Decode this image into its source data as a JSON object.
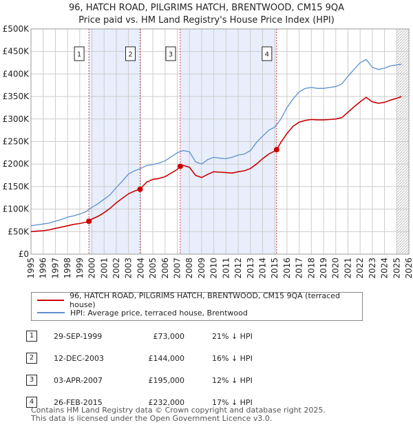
{
  "header": {
    "title_line1": "96, HATCH ROAD, PILGRIMS HATCH, BRENTWOOD, CM15 9QA",
    "title_line2": "Price paid vs. HM Land Registry's House Price Index (HPI)"
  },
  "colors": {
    "red": "#cc0000",
    "blue": "#5b8fcf",
    "band": "#e8eefb",
    "grid": "#cccccc",
    "vline": "#d04040"
  },
  "chart_data": {
    "type": "line",
    "title": "Price paid vs. HM Land Registry's House Price Index (HPI)",
    "xlabel": "",
    "ylabel": "",
    "xlim": [
      1995,
      2026
    ],
    "ylim": [
      0,
      500000
    ],
    "y_ticks": [
      {
        "value": 0,
        "label": "£0"
      },
      {
        "value": 50000,
        "label": "£50K"
      },
      {
        "value": 100000,
        "label": "£100K"
      },
      {
        "value": 150000,
        "label": "£150K"
      },
      {
        "value": 200000,
        "label": "£200K"
      },
      {
        "value": 250000,
        "label": "£250K"
      },
      {
        "value": 300000,
        "label": "£300K"
      },
      {
        "value": 350000,
        "label": "£350K"
      },
      {
        "value": 400000,
        "label": "£400K"
      },
      {
        "value": 450000,
        "label": "£450K"
      },
      {
        "value": 500000,
        "label": "£500K"
      }
    ],
    "x_ticks": [
      "1995",
      "1996",
      "1997",
      "1998",
      "1999",
      "2000",
      "2001",
      "2002",
      "2003",
      "2004",
      "2005",
      "2006",
      "2007",
      "2008",
      "2009",
      "2010",
      "2011",
      "2012",
      "2013",
      "2014",
      "2015",
      "2016",
      "2017",
      "2018",
      "2019",
      "2020",
      "2021",
      "2022",
      "2023",
      "2024",
      "2025",
      "2026"
    ],
    "shaded_bands": [
      [
        1999.75,
        2003.95
      ],
      [
        2007.25,
        2015.15
      ]
    ],
    "forecast_start": 2025.0,
    "series": [
      {
        "name": "HPI: Average price, terraced house, Brentwood",
        "color": "#5b8fcf",
        "x": [
          1995,
          1995.5,
          1996,
          1996.5,
          1997,
          1997.5,
          1998,
          1998.5,
          1999,
          1999.5,
          2000,
          2000.5,
          2001,
          2001.5,
          2002,
          2002.5,
          2003,
          2003.5,
          2004,
          2004.5,
          2005,
          2005.5,
          2006,
          2006.5,
          2007,
          2007.5,
          2008,
          2008.5,
          2009,
          2009.5,
          2010,
          2010.5,
          2011,
          2011.5,
          2012,
          2012.5,
          2013,
          2013.5,
          2014,
          2014.5,
          2015,
          2015.5,
          2016,
          2016.5,
          2017,
          2017.5,
          2018,
          2018.5,
          2019,
          2019.5,
          2020,
          2020.5,
          2021,
          2021.5,
          2022,
          2022.5,
          2023,
          2023.5,
          2024,
          2024.5,
          2025,
          2025.4
        ],
        "values": [
          63000,
          65000,
          67000,
          69000,
          73000,
          77000,
          82000,
          85000,
          89000,
          94000,
          104000,
          112000,
          122000,
          132000,
          148000,
          162000,
          178000,
          185000,
          190000,
          197000,
          199000,
          202000,
          207000,
          216000,
          225000,
          230000,
          227000,
          205000,
          200000,
          210000,
          215000,
          213000,
          212000,
          215000,
          220000,
          222000,
          230000,
          248000,
          262000,
          275000,
          282000,
          300000,
          325000,
          345000,
          360000,
          368000,
          370000,
          368000,
          368000,
          370000,
          372000,
          378000,
          395000,
          410000,
          425000,
          432000,
          415000,
          410000,
          413000,
          418000,
          420000,
          422000
        ]
      },
      {
        "name": "96, HATCH ROAD, PILGRIMS HATCH, BRENTWOOD, CM15 9QA (terraced house)",
        "color": "#cc0000",
        "x": [
          1995,
          1995.5,
          1996,
          1996.5,
          1997,
          1997.5,
          1998,
          1998.5,
          1999,
          1999.5,
          1999.75,
          2000,
          2000.5,
          2001,
          2001.5,
          2002,
          2002.5,
          2003,
          2003.5,
          2003.95,
          2004,
          2004.5,
          2005,
          2005.5,
          2006,
          2006.5,
          2007,
          2007.25,
          2007.5,
          2008,
          2008.5,
          2009,
          2009.5,
          2010,
          2010.5,
          2011,
          2011.5,
          2012,
          2012.5,
          2013,
          2013.5,
          2014,
          2014.5,
          2015,
          2015.15,
          2015.5,
          2016,
          2016.5,
          2017,
          2017.5,
          2018,
          2018.5,
          2019,
          2019.5,
          2020,
          2020.5,
          2021,
          2021.5,
          2022,
          2022.5,
          2023,
          2023.5,
          2024,
          2024.5,
          2025,
          2025.4
        ],
        "values": [
          50000,
          51000,
          52000,
          54000,
          57000,
          60000,
          63000,
          66000,
          68000,
          71000,
          73000,
          78000,
          84000,
          92000,
          102000,
          114000,
          124000,
          134000,
          140000,
          144000,
          146000,
          160000,
          166000,
          168000,
          172000,
          180000,
          188000,
          195000,
          197000,
          193000,
          175000,
          170000,
          177000,
          183000,
          182000,
          181000,
          180000,
          183000,
          185000,
          190000,
          200000,
          212000,
          222000,
          229000,
          232000,
          248000,
          268000,
          284000,
          293000,
          297000,
          299000,
          298000,
          298000,
          299000,
          300000,
          303000,
          315000,
          327000,
          338000,
          348000,
          338000,
          335000,
          337000,
          342000,
          346000,
          350000
        ]
      }
    ],
    "transactions": [
      {
        "n": "1",
        "x": 1999.75,
        "value": 73000
      },
      {
        "n": "2",
        "x": 2003.95,
        "value": 144000
      },
      {
        "n": "3",
        "x": 2007.25,
        "value": 195000
      },
      {
        "n": "4",
        "x": 2015.15,
        "value": 232000
      }
    ]
  },
  "legend": {
    "red_label": "96, HATCH ROAD, PILGRIMS HATCH, BRENTWOOD, CM15 9QA (terraced house)",
    "blue_label": "HPI: Average price, terraced house, Brentwood"
  },
  "table": {
    "rows": [
      {
        "n": "1",
        "date": "29-SEP-1999",
        "price": "£73,000",
        "hpi": "21% ↓ HPI"
      },
      {
        "n": "2",
        "date": "12-DEC-2003",
        "price": "£144,000",
        "hpi": "16% ↓ HPI"
      },
      {
        "n": "3",
        "date": "03-APR-2007",
        "price": "£195,000",
        "hpi": "12% ↓ HPI"
      },
      {
        "n": "4",
        "date": "26-FEB-2015",
        "price": "£232,000",
        "hpi": "17% ↓ HPI"
      }
    ]
  },
  "footer": {
    "line1": "Contains HM Land Registry data © Crown copyright and database right 2025.",
    "line2": "This data is licensed under the Open Government Licence v3.0."
  }
}
